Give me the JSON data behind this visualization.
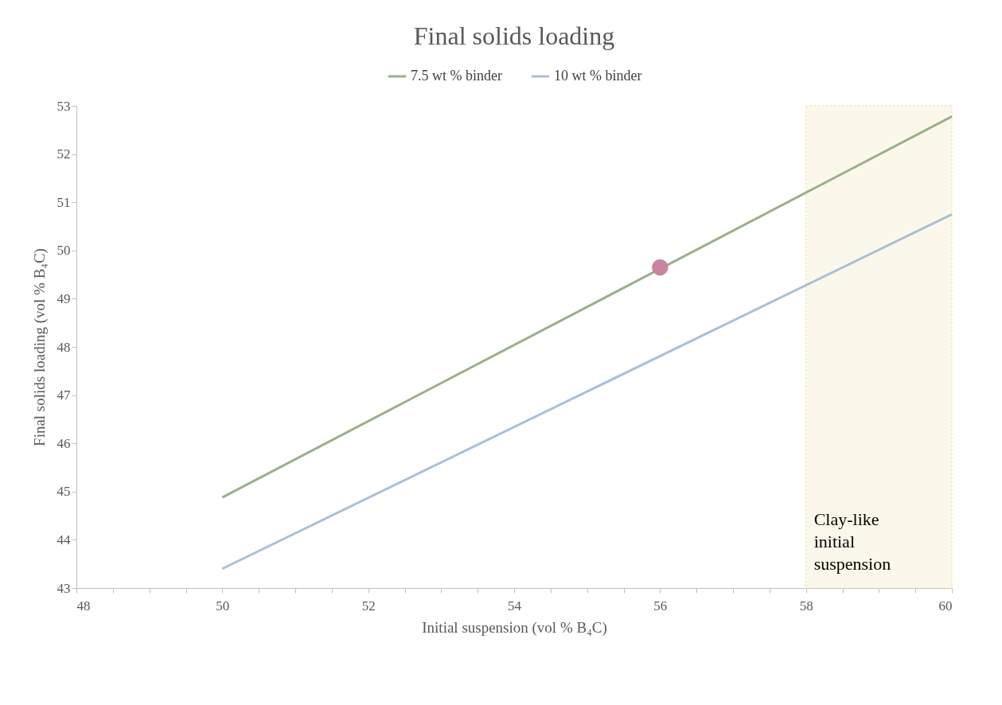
{
  "chart_data": {
    "type": "line",
    "title": "Final solids loading",
    "xlabel": "Initial suspension (vol % B₄C)",
    "ylabel": "Final solids loading (vol % B₄C)",
    "x": [
      50,
      60
    ],
    "series": [
      {
        "name": "7.5 wt % binder",
        "color": "#9bb08a",
        "values": [
          44.88,
          52.78
        ]
      },
      {
        "name": "10 wt % binder",
        "color": "#a9bfd9",
        "values": [
          43.4,
          50.75
        ]
      },
      {
        "type": "scatter",
        "color": "#c9859d",
        "x": [
          56
        ],
        "values": [
          49.65
        ]
      }
    ],
    "bands": [
      {
        "axis": "x",
        "from": 58,
        "to": 60,
        "label": "Clay-like initial suspension",
        "color": "#f8f4de"
      }
    ],
    "xlim": [
      48,
      60
    ],
    "ylim": [
      43,
      53
    ],
    "xticks": [
      48,
      {
        "value": 48.5,
        "label": null
      },
      {
        "value": 49,
        "label": null
      },
      {
        "value": 49.5,
        "label": null
      },
      50,
      {
        "value": 50.5,
        "label": null
      },
      {
        "value": 51,
        "label": null
      },
      {
        "value": 51.5,
        "label": null
      },
      52,
      {
        "value": 52.5,
        "label": null
      },
      {
        "value": 53,
        "label": null
      },
      {
        "value": 53.5,
        "label": null
      },
      54,
      {
        "value": 54.5,
        "label": null
      },
      {
        "value": 55,
        "label": null
      },
      {
        "value": 55.5,
        "label": null
      },
      56,
      {
        "value": 56.5,
        "label": null
      },
      {
        "value": 57,
        "label": null
      },
      {
        "value": 57.5,
        "label": null
      },
      58,
      {
        "value": 58.5,
        "label": null
      },
      {
        "value": 59,
        "label": null
      },
      {
        "value": 59.5,
        "label": null
      },
      60
    ],
    "yticks": [
      43,
      44,
      45,
      46,
      47,
      48,
      49,
      50,
      51,
      52,
      53
    ],
    "legend": "top",
    "grid": false,
    "line_style": "solid"
  }
}
